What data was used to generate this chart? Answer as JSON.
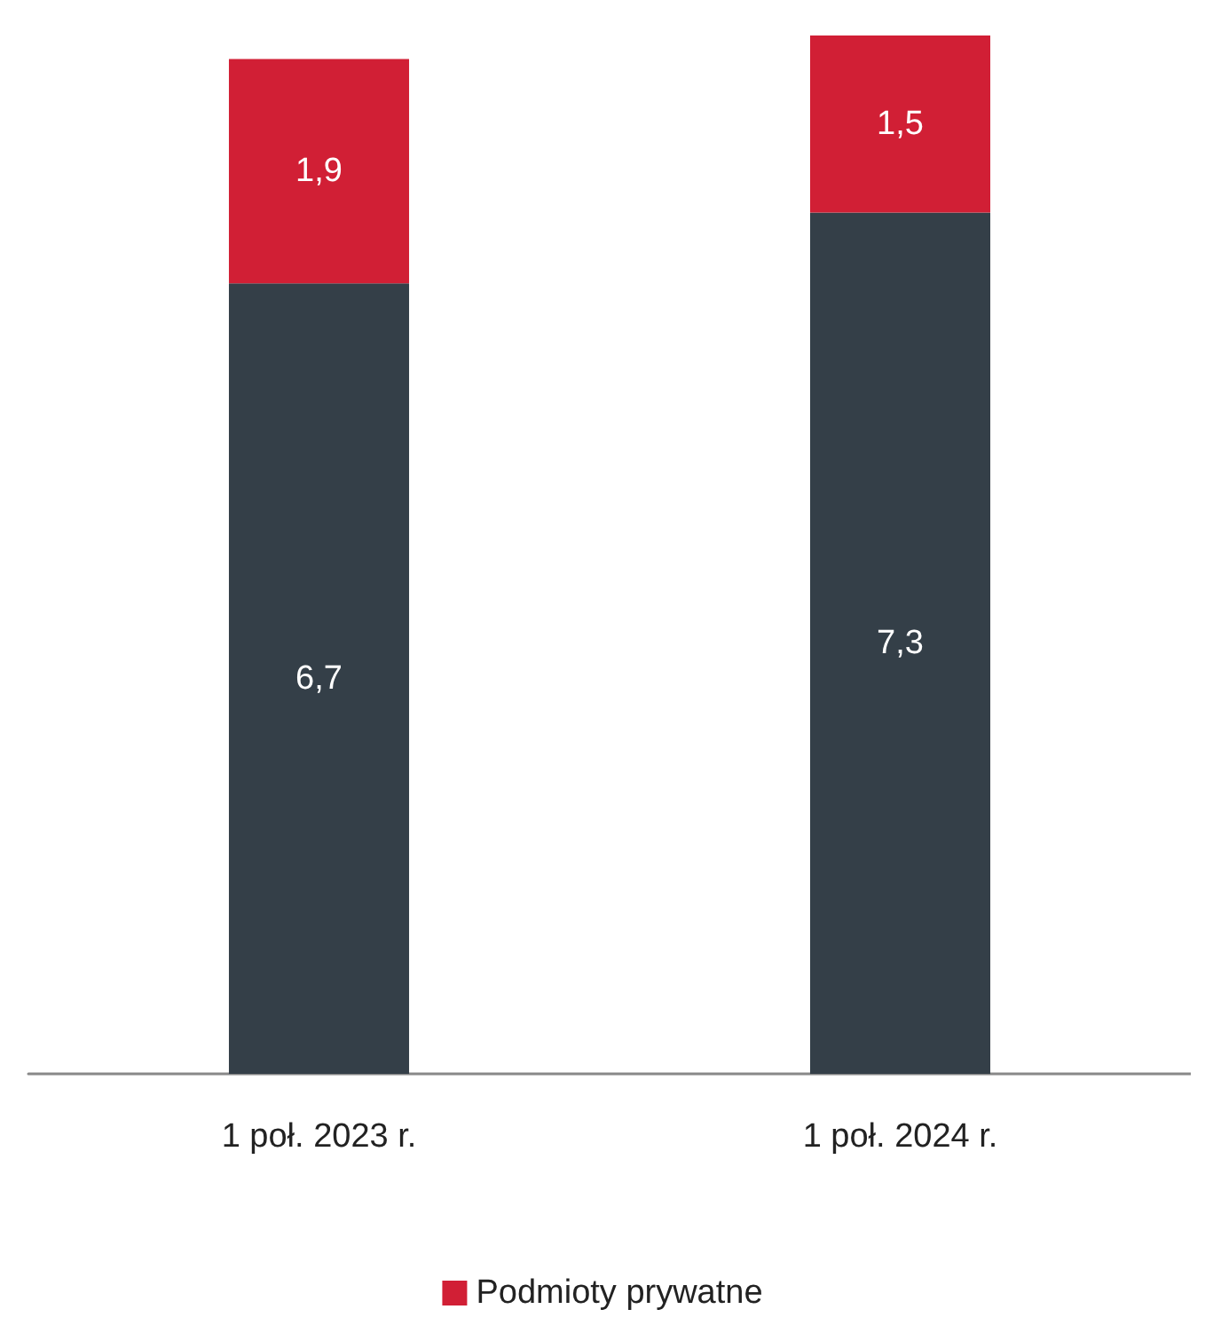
{
  "chart_data": {
    "type": "bar",
    "stacked": true,
    "categories": [
      "1 poł. 2023 r.",
      "1 poł. 2024 r."
    ],
    "ylim": [
      0,
      8.8
    ],
    "tick_labels": "x",
    "legend": "bottom",
    "series": [
      {
        "color": "#343f48",
        "values": [
          6.7,
          7.3
        ],
        "value_labels": [
          "6,7",
          "7,3"
        ]
      },
      {
        "name": "Podmioty prywatne",
        "color": "#d11f35",
        "values": [
          1.9,
          1.5
        ],
        "value_labels": [
          "1,9",
          "1,5"
        ]
      }
    ]
  }
}
